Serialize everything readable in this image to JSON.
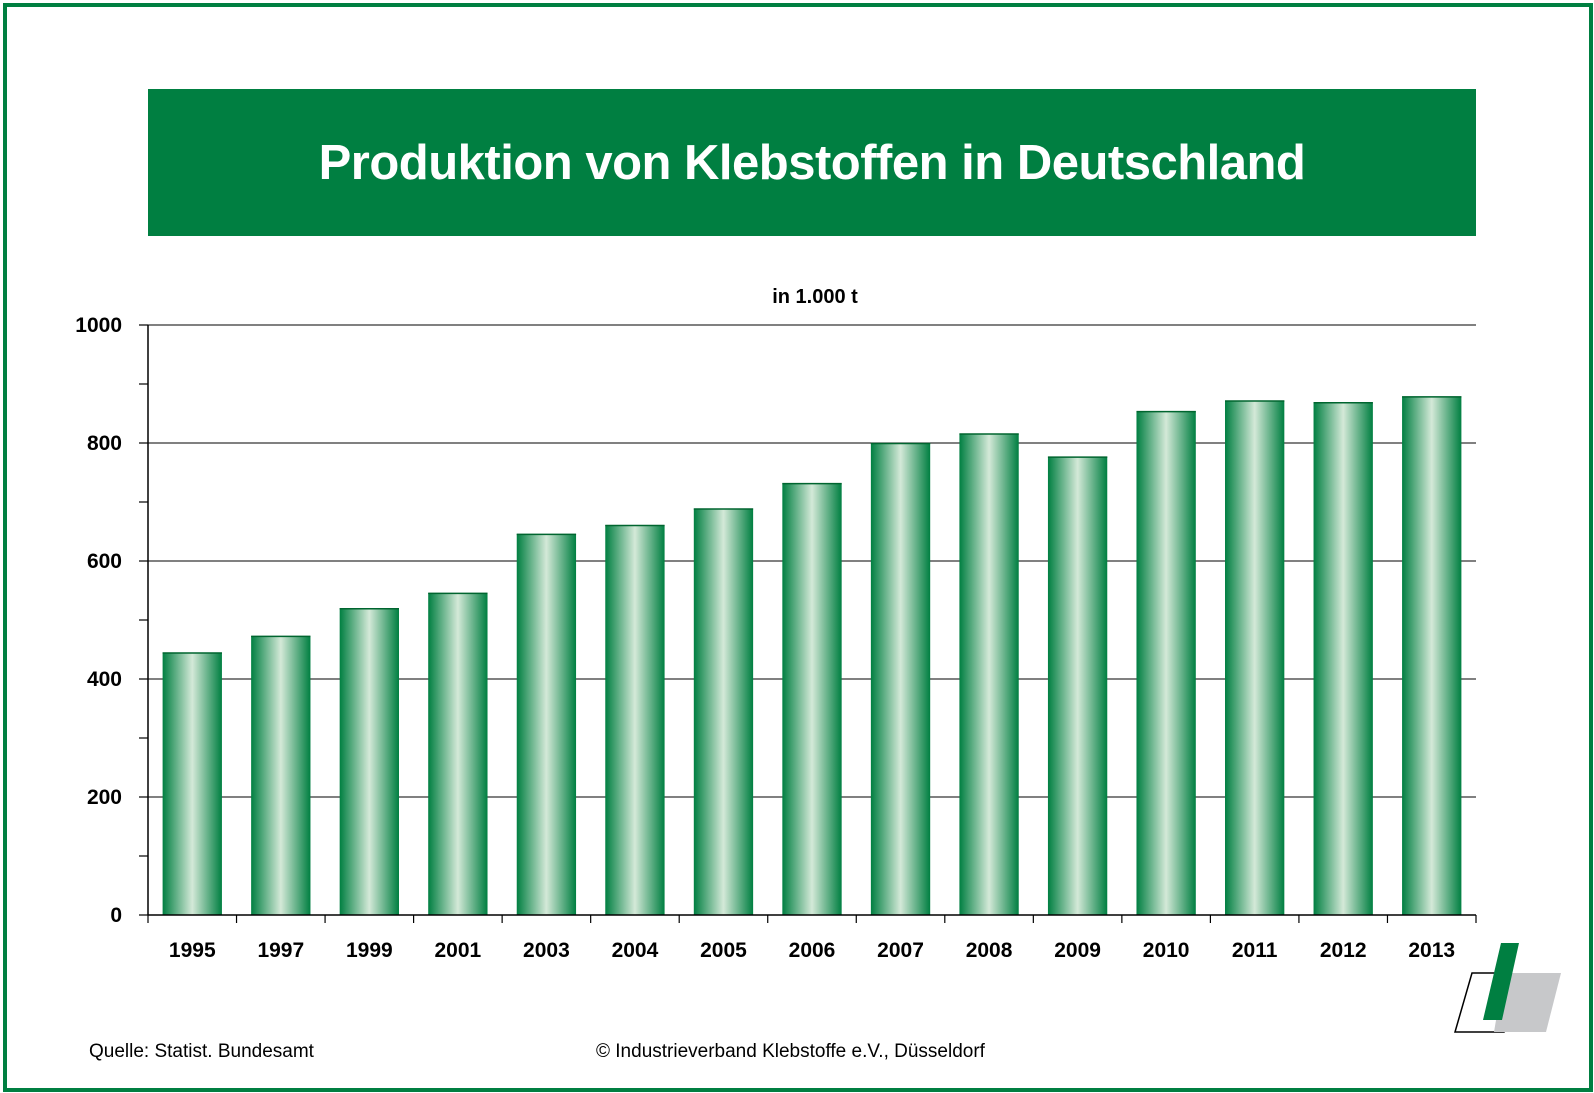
{
  "title": "Produktion von Klebstoffen in Deutschland",
  "colors": {
    "brand_green": "#007f41",
    "bar_light": "#d4e9d8",
    "bar_dark": "#007f41",
    "logo_gray": "#c7c8ca"
  },
  "chart_data": {
    "type": "bar",
    "title": "Produktion von Klebstoffen in Deutschland",
    "unit_label": "in 1.000 t",
    "categories": [
      "1995",
      "1997",
      "1999",
      "2001",
      "2003",
      "2004",
      "2005",
      "2006",
      "2007",
      "2008",
      "2009",
      "2010",
      "2011",
      "2012",
      "2013"
    ],
    "values": [
      445,
      473,
      520,
      546,
      646,
      661,
      689,
      732,
      800,
      816,
      777,
      854,
      872,
      869,
      879
    ],
    "ylim": [
      0,
      1000
    ],
    "yticks": [
      "0",
      "200",
      "400",
      "600",
      "800",
      "1000"
    ],
    "xlabel": "",
    "ylabel": "",
    "grid": true,
    "legend": "none"
  },
  "footer": {
    "source": "Quelle: Statist. Bundesamt",
    "copyright": "© Industrieverband Klebstoffe e.V., Düsseldorf"
  },
  "logo": {
    "icon": "ivk-logo-icon"
  }
}
